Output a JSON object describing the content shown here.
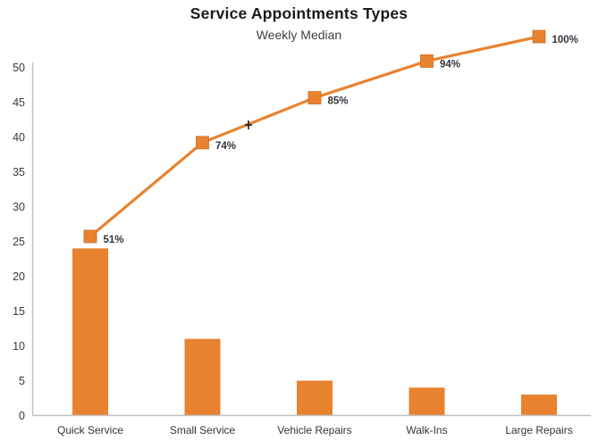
{
  "chart_data": {
    "type": "pareto (bar + cumulative line)",
    "title": "Service Appointments Types",
    "subtitle": "Weekly Median",
    "categories": [
      "Quick Service",
      "Small Service",
      "Vehicle Repairs",
      "Walk-Ins",
      "Large Repairs"
    ],
    "series": [
      {
        "name": "weekly-median-count",
        "type": "bar",
        "values": [
          24,
          11,
          5,
          4,
          3
        ]
      },
      {
        "name": "cumulative-percent",
        "type": "line",
        "values": [
          51,
          74,
          85,
          94,
          100
        ],
        "point_labels": [
          "51%",
          "74%",
          "85%",
          "94%",
          "100%"
        ]
      }
    ],
    "xlabel": "",
    "ylabel": "",
    "ylim": [
      0,
      50
    ],
    "y_ticks": [
      0,
      5,
      10,
      15,
      20,
      25,
      30,
      35,
      40,
      45,
      50
    ],
    "grid": false,
    "legend": "none",
    "colors": {
      "bar": "#E8822F",
      "line": "#E8822F",
      "marker": "#E8822F",
      "marker_edge": "#CF6B20",
      "axis_line": "#BFBFBF",
      "title": "#1b1b1b",
      "subtitle": "#3f3f3f",
      "tick_label": "#3a3a3a",
      "point_label": "#33333d",
      "cursor": "#1a1a1a"
    }
  }
}
